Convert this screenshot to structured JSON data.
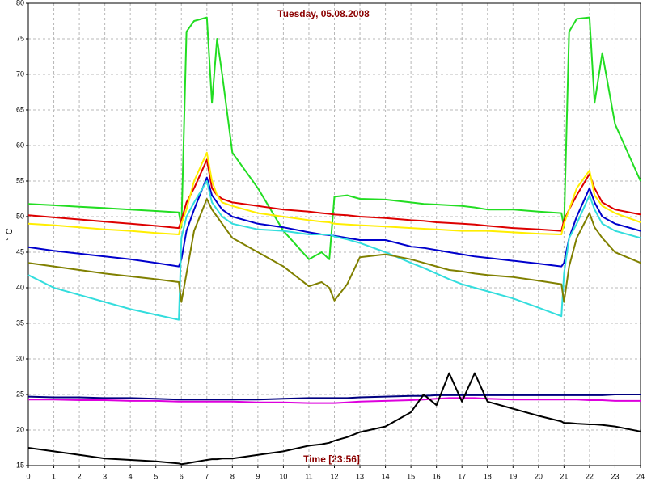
{
  "chart_data": {
    "type": "line",
    "title": "Tuesday, 05.08.2008",
    "x_label": "Time [23:56]",
    "y_label": "° C",
    "x": [
      0,
      1,
      2,
      3,
      4,
      5,
      5.9,
      6,
      6.2,
      6.5,
      7,
      7.2,
      7.4,
      7.6,
      8,
      9,
      10,
      11,
      11.5,
      11.8,
      12,
      12.5,
      13,
      14,
      15,
      15.5,
      16,
      16.5,
      17,
      17.5,
      18,
      19,
      20,
      20.9,
      21,
      21.2,
      21.5,
      22,
      22.2,
      22.5,
      23,
      24
    ],
    "xlim": [
      0,
      24
    ],
    "xticks": [
      0,
      1,
      2,
      3,
      4,
      5,
      6,
      7,
      8,
      9,
      10,
      11,
      12,
      13,
      14,
      15,
      16,
      17,
      18,
      19,
      20,
      21,
      22,
      23,
      24
    ],
    "ylim": [
      15,
      80
    ],
    "yticks": [
      15,
      20,
      25,
      30,
      35,
      40,
      45,
      50,
      55,
      60,
      65,
      70,
      75,
      80
    ],
    "grid": true,
    "series": [
      {
        "color": "#22dd22",
        "values": [
          51.8,
          51.6,
          51.4,
          51.2,
          51,
          50.8,
          50.6,
          48.5,
          76,
          77.5,
          78,
          66,
          75,
          70,
          59,
          54,
          48,
          44,
          45,
          44,
          52.8,
          53,
          52.5,
          52.4,
          52,
          51.8,
          51.7,
          51.6,
          51.5,
          51.3,
          51,
          51,
          50.7,
          50.5,
          48.5,
          76,
          77.8,
          78,
          66,
          73,
          63,
          55
        ]
      },
      {
        "color": "#dd0000",
        "values": [
          50.2,
          49.9,
          49.6,
          49.3,
          49,
          48.7,
          48.4,
          49.5,
          52,
          54,
          58,
          54,
          53,
          52.5,
          52,
          51.5,
          51,
          50.7,
          50.5,
          50.4,
          50.3,
          50.2,
          50,
          49.8,
          49.5,
          49.4,
          49.2,
          49.1,
          49,
          48.9,
          48.7,
          48.4,
          48.2,
          48,
          49.5,
          51,
          53,
          56,
          54,
          52,
          51,
          50.3
        ]
      },
      {
        "color": "#ffee00",
        "values": [
          49,
          48.8,
          48.5,
          48.2,
          48,
          47.7,
          47.5,
          49,
          51,
          55,
          59,
          55,
          53,
          52,
          51.5,
          50.5,
          50,
          49.5,
          49.3,
          49.2,
          49,
          48.9,
          48.8,
          48.6,
          48.4,
          48.3,
          48.2,
          48.1,
          48,
          48,
          48,
          47.8,
          47.6,
          47.5,
          49,
          51,
          54,
          56.5,
          53,
          51.5,
          50.5,
          49.2
        ]
      },
      {
        "color": "#0000cc",
        "values": [
          45.7,
          45.2,
          44.8,
          44.4,
          44,
          43.5,
          43,
          44,
          48,
          51,
          55.5,
          53,
          52,
          51,
          50,
          49,
          48.5,
          47.8,
          47.5,
          47.4,
          47.3,
          47,
          46.7,
          46.7,
          45.8,
          45.6,
          45.3,
          45,
          44.7,
          44.4,
          44.2,
          43.8,
          43.4,
          43,
          43.5,
          47,
          50,
          54,
          52,
          50,
          49,
          48
        ]
      },
      {
        "color": "#33dddd",
        "values": [
          41.8,
          40,
          39,
          38,
          37,
          36.2,
          35.5,
          47,
          50,
          52,
          55,
          52,
          51,
          50,
          49,
          48.2,
          48,
          47.5,
          47.5,
          47.5,
          47.2,
          46.8,
          46.3,
          45,
          43.5,
          42.8,
          42,
          41.2,
          40.5,
          40,
          39.5,
          38.5,
          37.2,
          36,
          42,
          47,
          49,
          53,
          51,
          49,
          48,
          47
        ]
      },
      {
        "color": "#808000",
        "values": [
          43.5,
          43,
          42.5,
          42,
          41.6,
          41.2,
          40.8,
          38,
          42,
          48,
          52.5,
          51,
          50,
          49,
          47,
          45,
          43,
          40.2,
          40.8,
          40,
          38.2,
          40.5,
          44.3,
          44.7,
          44,
          43.5,
          43,
          42.5,
          42.3,
          42,
          41.8,
          41.5,
          41,
          40.5,
          38,
          43,
          47,
          50.5,
          48.5,
          47,
          45,
          43.5
        ]
      },
      {
        "color": "#000080",
        "values": [
          24.7,
          24.6,
          24.6,
          24.5,
          24.5,
          24.4,
          24.3,
          24.3,
          24.3,
          24.3,
          24.3,
          24.3,
          24.3,
          24.3,
          24.3,
          24.3,
          24.4,
          24.5,
          24.5,
          24.5,
          24.5,
          24.5,
          24.6,
          24.7,
          24.8,
          24.8,
          24.9,
          24.9,
          24.9,
          24.9,
          24.9,
          24.9,
          24.9,
          24.9,
          24.9,
          24.9,
          24.9,
          24.9,
          24.9,
          24.9,
          25,
          25
        ]
      },
      {
        "color": "#dd00dd",
        "values": [
          24.3,
          24.3,
          24.2,
          24.2,
          24.1,
          24.1,
          24,
          24,
          24,
          24,
          24,
          24,
          24,
          24,
          24,
          23.9,
          23.9,
          23.8,
          23.8,
          23.8,
          23.8,
          23.9,
          24,
          24.1,
          24.2,
          24.3,
          24.4,
          24.5,
          24.5,
          24.5,
          24.4,
          24.3,
          24.3,
          24.3,
          24.3,
          24.3,
          24.3,
          24.2,
          24.2,
          24.2,
          24.1,
          24.1
        ]
      },
      {
        "color": "#000000",
        "values": [
          17.5,
          17,
          16.5,
          16,
          15.8,
          15.6,
          15.3,
          15.2,
          15.3,
          15.5,
          15.8,
          15.9,
          15.9,
          16,
          16,
          16.5,
          17,
          17.8,
          18,
          18.2,
          18.5,
          19,
          19.7,
          20.5,
          22.5,
          25,
          23.5,
          28,
          24,
          28,
          24,
          23,
          22,
          21.2,
          21,
          21,
          20.9,
          20.8,
          20.8,
          20.7,
          20.5,
          19.8
        ]
      }
    ]
  }
}
